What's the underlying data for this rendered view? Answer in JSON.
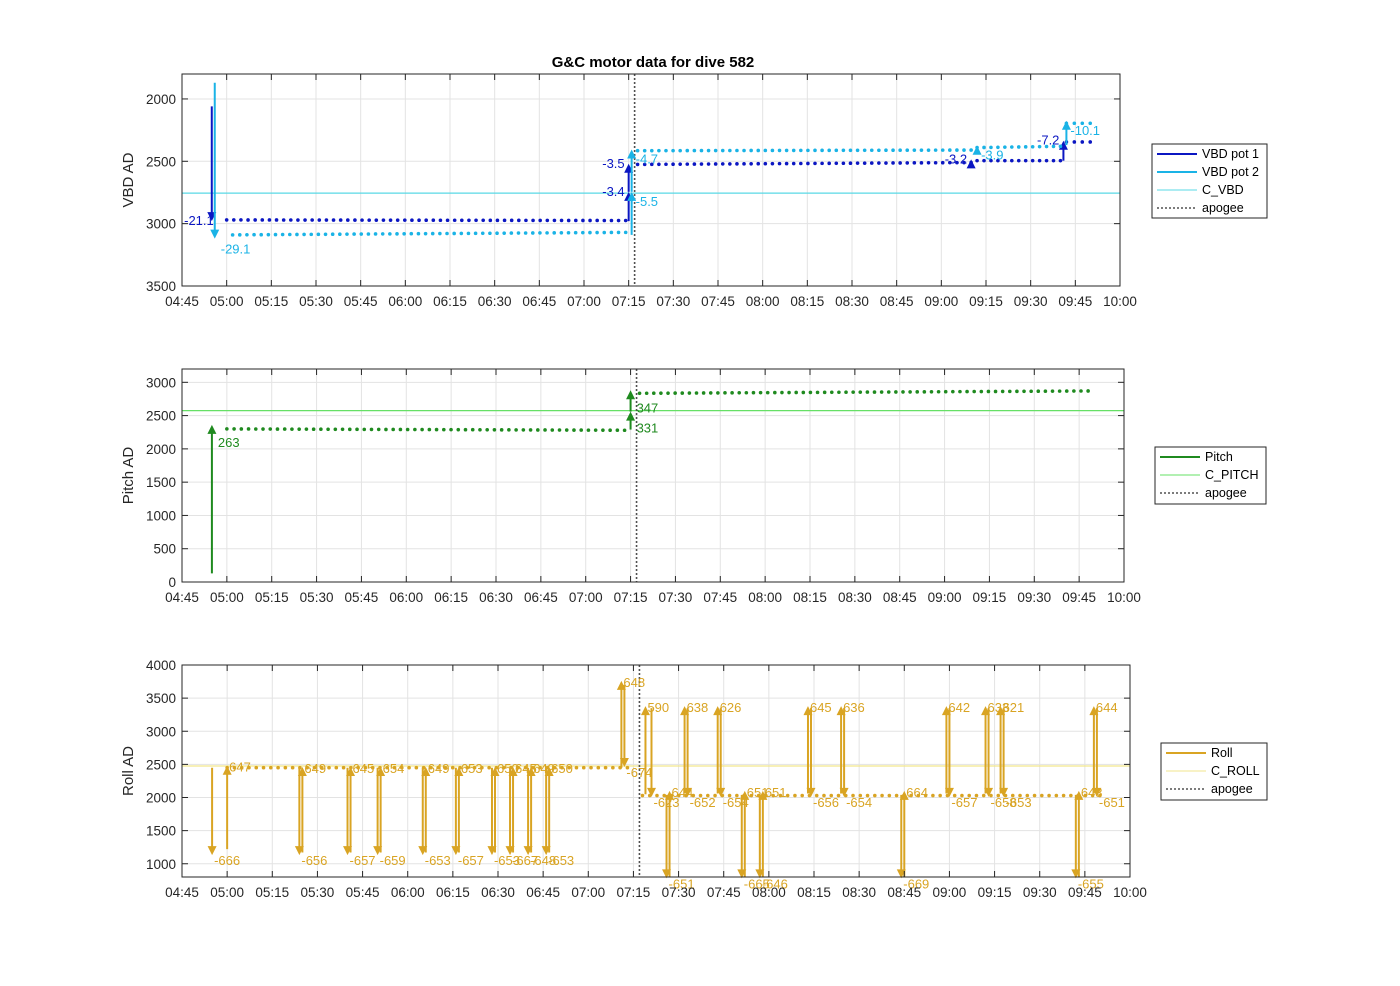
{
  "title": "G&C motor data for dive 582",
  "colors": {
    "vbd1": "#0b16c2",
    "vbd2": "#1ab3e6",
    "c_vbd": "#59d9e6",
    "pitch": "#1f8a1f",
    "c_pitch": "#66e066",
    "roll": "#d9a423",
    "c_roll": "#f2e68c",
    "apogee": "#505050",
    "grid": "#e3e3e3",
    "axis": "#262626"
  },
  "chart_data": [
    {
      "type": "line",
      "ylabel": "VBD AD",
      "xlabel": "",
      "x_unit": "time HH:MM",
      "xlim": [
        "04:45",
        "10:00"
      ],
      "xticks": [
        "04:45",
        "05:00",
        "05:15",
        "05:30",
        "05:45",
        "06:00",
        "06:15",
        "06:30",
        "06:45",
        "07:00",
        "07:15",
        "07:30",
        "07:45",
        "08:00",
        "08:15",
        "08:30",
        "08:45",
        "09:00",
        "09:15",
        "09:30",
        "09:45",
        "10:00"
      ],
      "ylim": [
        3500,
        1800
      ],
      "y_reversed": true,
      "yticks": [
        2000,
        2500,
        3000,
        3500
      ],
      "grid": true,
      "legend_placement": "outside-right",
      "legend": [
        "VBD pot 1",
        "VBD pot 2",
        "C_VBD",
        "apogee"
      ],
      "apogee": "07:17",
      "reference_lines": [
        {
          "name": "C_VBD",
          "y": 2755
        }
      ],
      "series": [
        {
          "name": "VBD pot 1",
          "color_key": "vbd1",
          "style": "dots",
          "segments": [
            {
              "from": "05:00",
              "to": "07:14",
              "y_start": 2970,
              "y_end": 2975
            },
            {
              "from": "07:18",
              "to": "09:10",
              "y_start": 2525,
              "y_end": 2510
            },
            {
              "from": "09:12",
              "to": "09:40",
              "y_start": 2495,
              "y_end": 2495
            },
            {
              "from": "09:42",
              "to": "09:50",
              "y_start": 2345,
              "y_end": 2345
            }
          ],
          "moves": [
            {
              "time": "04:55",
              "from": 2060,
              "to": 2980,
              "label": "-21.1"
            },
            {
              "time": "07:15",
              "from": 2980,
              "to": 2745,
              "label": "-3.4"
            },
            {
              "time": "07:15",
              "from": 2745,
              "to": 2520,
              "label": "-3.5"
            },
            {
              "time": "09:10",
              "from": 2520,
              "to": 2485,
              "label": "-3.2"
            },
            {
              "time": "09:41",
              "from": 2495,
              "to": 2335,
              "label": "-7.2"
            }
          ]
        },
        {
          "name": "VBD pot 2",
          "color_key": "vbd2",
          "style": "dots",
          "segments": [
            {
              "from": "05:02",
              "to": "07:14",
              "y_start": 3090,
              "y_end": 3070
            },
            {
              "from": "07:18",
              "to": "09:10",
              "y_start": 2415,
              "y_end": 2410
            },
            {
              "from": "09:12",
              "to": "09:40",
              "y_start": 2390,
              "y_end": 2380
            },
            {
              "from": "09:42",
              "to": "09:50",
              "y_start": 2195,
              "y_end": 2195
            }
          ],
          "moves": [
            {
              "time": "04:56",
              "from": 1870,
              "to": 3120,
              "label": "-29.1"
            },
            {
              "time": "07:16",
              "from": 3090,
              "to": 2745,
              "label": "-5.5"
            },
            {
              "time": "07:16",
              "from": 2745,
              "to": 2405,
              "label": "-4.7"
            },
            {
              "time": "09:12",
              "from": 2410,
              "to": 2375,
              "label": "-3.9"
            },
            {
              "time": "09:42",
              "from": 2370,
              "to": 2175,
              "label": "-10.1"
            }
          ]
        }
      ]
    },
    {
      "type": "line",
      "ylabel": "Pitch AD",
      "xlabel": "",
      "x_unit": "time HH:MM",
      "xlim": [
        "04:45",
        "10:00"
      ],
      "xticks": [
        "04:45",
        "05:00",
        "05:15",
        "05:30",
        "05:45",
        "06:00",
        "06:15",
        "06:30",
        "06:45",
        "07:00",
        "07:15",
        "07:30",
        "07:45",
        "08:00",
        "08:15",
        "08:30",
        "08:45",
        "09:00",
        "09:15",
        "09:30",
        "09:45",
        "10:00"
      ],
      "ylim": [
        0,
        3200
      ],
      "yticks": [
        0,
        500,
        1000,
        1500,
        2000,
        2500,
        3000
      ],
      "grid": true,
      "legend_placement": "outside-right",
      "legend": [
        "Pitch",
        "C_PITCH",
        "apogee"
      ],
      "apogee": "07:17",
      "reference_lines": [
        {
          "name": "C_PITCH",
          "y": 2575
        }
      ],
      "series": [
        {
          "name": "Pitch",
          "color_key": "pitch",
          "style": "dots",
          "segments": [
            {
              "from": "05:00",
              "to": "07:13",
              "y_start": 2300,
              "y_end": 2280
            },
            {
              "from": "07:18",
              "to": "09:48",
              "y_start": 2835,
              "y_end": 2870
            }
          ],
          "moves": [
            {
              "time": "04:55",
              "from": 130,
              "to": 2360,
              "label": "263"
            },
            {
              "time": "07:15",
              "from": 2290,
              "to": 2560,
              "label": "331"
            },
            {
              "time": "07:15",
              "from": 2560,
              "to": 2880,
              "label": "347"
            }
          ]
        }
      ]
    },
    {
      "type": "line",
      "ylabel": "Roll AD",
      "xlabel": "",
      "x_unit": "time HH:MM",
      "xlim": [
        "04:45",
        "10:00"
      ],
      "xticks": [
        "04:45",
        "05:00",
        "05:15",
        "05:30",
        "05:45",
        "06:00",
        "06:15",
        "06:30",
        "06:45",
        "07:00",
        "07:15",
        "07:30",
        "07:45",
        "08:00",
        "08:15",
        "08:30",
        "08:45",
        "09:00",
        "09:15",
        "09:30",
        "09:45",
        "10:00"
      ],
      "ylim": [
        800,
        4000
      ],
      "yticks": [
        1000,
        1500,
        2000,
        2500,
        3000,
        3500,
        4000
      ],
      "grid": true,
      "legend_placement": "outside-right",
      "legend": [
        "Roll",
        "C_ROLL",
        "apogee"
      ],
      "apogee": "07:17",
      "reference_lines": [
        {
          "name": "C_ROLL",
          "y": 2475
        }
      ],
      "series": [
        {
          "name": "Roll",
          "color_key": "roll",
          "style": "dots",
          "segments": [
            {
              "from": "05:00",
              "to": "07:13",
              "y_start": 2450,
              "y_end": 2450
            },
            {
              "from": "07:18",
              "to": "09:50",
              "y_start": 2030,
              "y_end": 2030
            }
          ],
          "moves": [
            {
              "time": "04:55",
              "from": 2450,
              "to": 1130,
              "label": "-666"
            },
            {
              "time": "05:00",
              "from": 1220,
              "to": 2480,
              "label": "647"
            },
            {
              "time": "05:24",
              "from": 2450,
              "to": 1130,
              "label": "-656"
            },
            {
              "time": "05:25",
              "from": 1170,
              "to": 2460,
              "label": "649"
            },
            {
              "time": "05:40",
              "from": 2450,
              "to": 1130,
              "label": "-657"
            },
            {
              "time": "05:41",
              "from": 1170,
              "to": 2460,
              "label": "645"
            },
            {
              "time": "05:50",
              "from": 2450,
              "to": 1130,
              "label": "-659"
            },
            {
              "time": "05:51",
              "from": 1170,
              "to": 2460,
              "label": "654"
            },
            {
              "time": "06:05",
              "from": 2450,
              "to": 1130,
              "label": "-653"
            },
            {
              "time": "06:06",
              "from": 1170,
              "to": 2460,
              "label": "649"
            },
            {
              "time": "06:16",
              "from": 2450,
              "to": 1130,
              "label": "-657"
            },
            {
              "time": "06:17",
              "from": 1170,
              "to": 2460,
              "label": "653"
            },
            {
              "time": "06:28",
              "from": 2450,
              "to": 1130,
              "label": "-653"
            },
            {
              "time": "06:29",
              "from": 1170,
              "to": 2460,
              "label": "650"
            },
            {
              "time": "06:34",
              "from": 2450,
              "to": 1130,
              "label": "-667"
            },
            {
              "time": "06:35",
              "from": 1170,
              "to": 2460,
              "label": "645"
            },
            {
              "time": "06:40",
              "from": 2450,
              "to": 1130,
              "label": "-648"
            },
            {
              "time": "06:41",
              "from": 1170,
              "to": 2460,
              "label": "649"
            },
            {
              "time": "06:46",
              "from": 2450,
              "to": 1130,
              "label": "-653"
            },
            {
              "time": "06:47",
              "from": 1170,
              "to": 2460,
              "label": "650"
            },
            {
              "time": "07:11",
              "from": 2450,
              "to": 3760,
              "label": "648"
            },
            {
              "time": "07:12",
              "from": 3700,
              "to": 2460,
              "label": "-674"
            },
            {
              "time": "07:19",
              "from": 2050,
              "to": 3380,
              "label": "590"
            },
            {
              "time": "07:21",
              "from": 3350,
              "to": 2010,
              "label": "-623"
            },
            {
              "time": "07:26",
              "from": 2040,
              "to": 780,
              "label": "-651"
            },
            {
              "time": "07:27",
              "from": 800,
              "to": 2100,
              "label": "644"
            },
            {
              "time": "07:32",
              "from": 2060,
              "to": 3380,
              "label": "638"
            },
            {
              "time": "07:33",
              "from": 3350,
              "to": 2010,
              "label": "-652"
            },
            {
              "time": "07:43",
              "from": 2060,
              "to": 3380,
              "label": "626"
            },
            {
              "time": "07:44",
              "from": 3350,
              "to": 2010,
              "label": "-654"
            },
            {
              "time": "07:51",
              "from": 2040,
              "to": 780,
              "label": "-665"
            },
            {
              "time": "07:52",
              "from": 800,
              "to": 2100,
              "label": "651"
            },
            {
              "time": "07:57",
              "from": 2040,
              "to": 780,
              "label": "-646"
            },
            {
              "time": "07:58",
              "from": 800,
              "to": 2100,
              "label": "651"
            },
            {
              "time": "08:13",
              "from": 2060,
              "to": 3380,
              "label": "645"
            },
            {
              "time": "08:14",
              "from": 3350,
              "to": 2010,
              "label": "-656"
            },
            {
              "time": "08:24",
              "from": 2060,
              "to": 3380,
              "label": "636"
            },
            {
              "time": "08:25",
              "from": 3350,
              "to": 2010,
              "label": "-654"
            },
            {
              "time": "08:44",
              "from": 2040,
              "to": 780,
              "label": "-669"
            },
            {
              "time": "08:45",
              "from": 800,
              "to": 2100,
              "label": "664"
            },
            {
              "time": "08:59",
              "from": 2060,
              "to": 3380,
              "label": "642"
            },
            {
              "time": "09:00",
              "from": 3350,
              "to": 2010,
              "label": "-657"
            },
            {
              "time": "09:12",
              "from": 2060,
              "to": 3380,
              "label": "633"
            },
            {
              "time": "09:13",
              "from": 3350,
              "to": 2010,
              "label": "-658"
            },
            {
              "time": "09:17",
              "from": 2060,
              "to": 3380,
              "label": "621"
            },
            {
              "time": "09:18",
              "from": 3350,
              "to": 2010,
              "label": "-653"
            },
            {
              "time": "09:42",
              "from": 2040,
              "to": 780,
              "label": "-655"
            },
            {
              "time": "09:43",
              "from": 800,
              "to": 2100,
              "label": "643"
            },
            {
              "time": "09:48",
              "from": 2060,
              "to": 3380,
              "label": "644"
            },
            {
              "time": "09:49",
              "from": 3350,
              "to": 2010,
              "label": "-651"
            }
          ]
        }
      ]
    }
  ]
}
